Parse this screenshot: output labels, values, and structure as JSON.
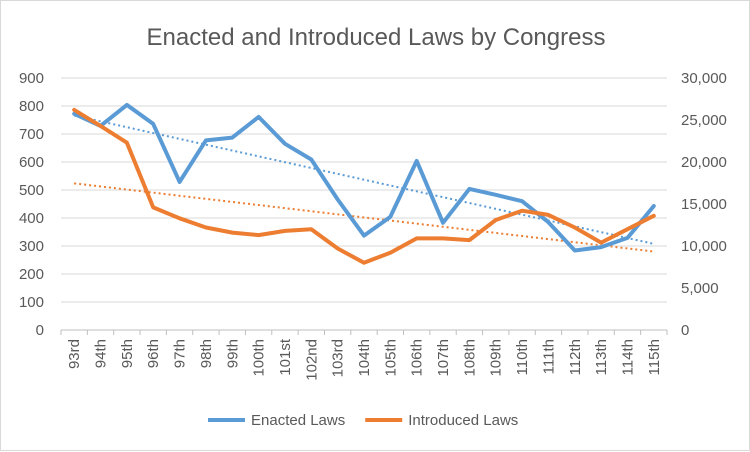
{
  "chart_data": {
    "type": "line",
    "title": "Enacted and Introduced Laws by Congress",
    "categories": [
      "93rd",
      "94th",
      "95th",
      "96th",
      "97th",
      "98th",
      "99th",
      "100th",
      "101st",
      "102nd",
      "103rd",
      "104th",
      "105th",
      "106th",
      "107th",
      "108th",
      "109th",
      "110th",
      "111th",
      "112th",
      "113th",
      "114th",
      "115th"
    ],
    "series": [
      {
        "name": "Enacted Laws",
        "axis": "left",
        "color": "#5B9BD5",
        "values": [
          772,
          729,
          804,
          736,
          529,
          677,
          687,
          761,
          665,
          609,
          466,
          337,
          404,
          604,
          383,
          504,
          483,
          460,
          385,
          284,
          296,
          329,
          443
        ]
      },
      {
        "name": "Introduced Laws",
        "axis": "right",
        "color": "#ED7D31",
        "values": [
          26200,
          24300,
          22300,
          14600,
          13300,
          12200,
          11600,
          11300,
          11800,
          12000,
          9700,
          8000,
          9200,
          10900,
          10900,
          10700,
          13100,
          14200,
          13700,
          12200,
          10400,
          12000,
          13600
        ]
      }
    ],
    "trendlines": [
      {
        "series": "Enacted Laws",
        "type": "linear",
        "style": "dotted"
      },
      {
        "series": "Introduced Laws",
        "type": "linear",
        "style": "dotted"
      }
    ],
    "y_left": {
      "ylim": [
        0,
        900
      ],
      "ticks": [
        "900",
        "800",
        "700",
        "600",
        "500",
        "400",
        "300",
        "200",
        "100",
        "0"
      ]
    },
    "y_right": {
      "ylim": [
        0,
        30000
      ],
      "ticks": [
        "30,000",
        "25,000",
        "20,000",
        "15,000",
        "10,000",
        "5,000",
        "0"
      ]
    },
    "grid": true,
    "legend_position": "bottom"
  }
}
